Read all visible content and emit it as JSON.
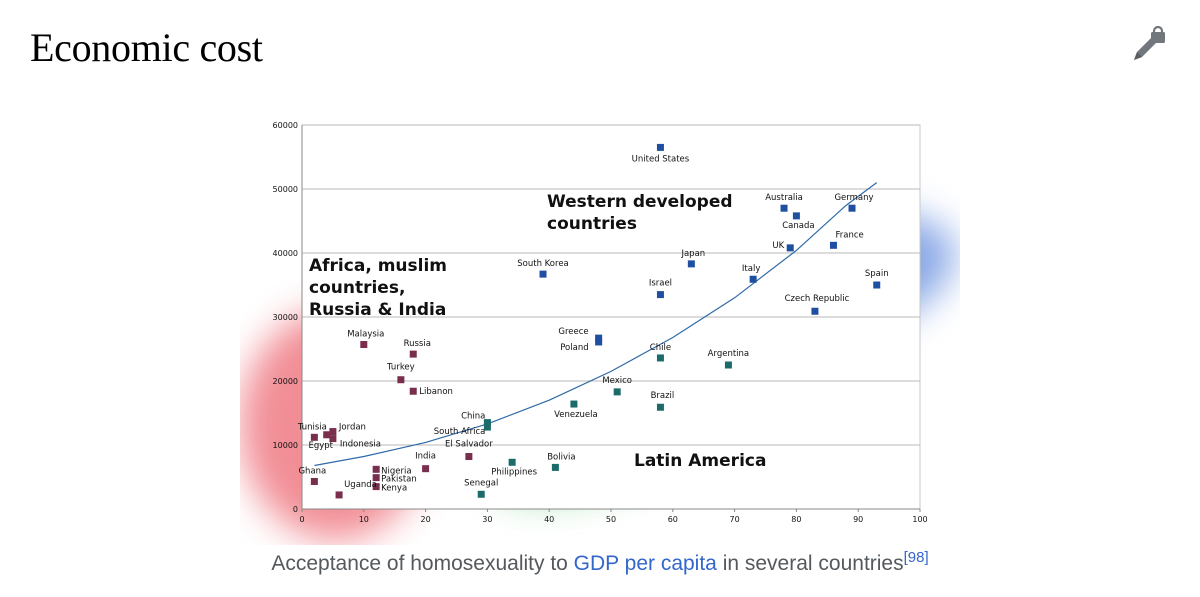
{
  "page": {
    "heading": "Economic cost",
    "caption_pre": "Acceptance of homosexuality to ",
    "caption_link": "GDP per capita",
    "caption_post": " in several countries",
    "caption_ref": "[98]"
  },
  "colors": {
    "accent_link": "#3366cc",
    "africa_region": "#e8434f",
    "western_region": "#3d6fd6",
    "latin_region": "#3fbf5a",
    "point_africa": "#7a2e4e",
    "point_western": "#1f4fa0",
    "point_latin": "#1a6b6a",
    "trend": "#2f6aa8"
  },
  "icons": {
    "edit": "pencil-lock-icon"
  },
  "chart_data": {
    "type": "scatter",
    "title": "",
    "xlabel": "",
    "ylabel": "",
    "xlim": [
      0,
      100
    ],
    "ylim": [
      0,
      60000
    ],
    "xticks": [
      0,
      10,
      20,
      30,
      40,
      50,
      60,
      70,
      80,
      90,
      100
    ],
    "yticks": [
      0,
      10000,
      20000,
      30000,
      40000,
      50000,
      60000
    ],
    "grid": "horizontal",
    "regions": [
      {
        "label_lines": [
          "Africa, muslim",
          "countries,",
          "Russia & India"
        ],
        "color": "#e8434f"
      },
      {
        "label_lines": [
          "Western developed",
          "countries"
        ],
        "color": "#3d6fd6"
      },
      {
        "label_lines": [
          "Latin America"
        ],
        "color": "#3fbf5a"
      }
    ],
    "points": [
      {
        "name": "United States",
        "x": 58,
        "y": 56500,
        "group": "western"
      },
      {
        "name": "Australia",
        "x": 78,
        "y": 47000,
        "group": "western"
      },
      {
        "name": "Germany",
        "x": 89,
        "y": 47000,
        "group": "western"
      },
      {
        "name": "Canada",
        "x": 80,
        "y": 45800,
        "group": "western"
      },
      {
        "name": "UK",
        "x": 79,
        "y": 40800,
        "group": "western"
      },
      {
        "name": "France",
        "x": 86,
        "y": 41200,
        "group": "western"
      },
      {
        "name": "Japan",
        "x": 63,
        "y": 38300,
        "group": "western"
      },
      {
        "name": "Italy",
        "x": 73,
        "y": 35900,
        "group": "western"
      },
      {
        "name": "Spain",
        "x": 93,
        "y": 35000,
        "group": "western"
      },
      {
        "name": "Israel",
        "x": 58,
        "y": 33500,
        "group": "western"
      },
      {
        "name": "Czech Republic",
        "x": 83,
        "y": 30900,
        "group": "western"
      },
      {
        "name": "South Korea",
        "x": 39,
        "y": 36700,
        "group": "western"
      },
      {
        "name": "Greece",
        "x": 48,
        "y": 26700,
        "group": "western"
      },
      {
        "name": "Poland",
        "x": 48,
        "y": 26100,
        "group": "western"
      },
      {
        "name": "Chile",
        "x": 58,
        "y": 23600,
        "group": "latin"
      },
      {
        "name": "Argentina",
        "x": 69,
        "y": 22500,
        "group": "latin"
      },
      {
        "name": "Mexico",
        "x": 51,
        "y": 18300,
        "group": "latin"
      },
      {
        "name": "Brazil",
        "x": 58,
        "y": 15900,
        "group": "latin"
      },
      {
        "name": "Venezuela",
        "x": 44,
        "y": 16400,
        "group": "latin"
      },
      {
        "name": "Bolivia",
        "x": 41,
        "y": 6500,
        "group": "latin"
      },
      {
        "name": "Philippines",
        "x": 34,
        "y": 7300,
        "group": "latin"
      },
      {
        "name": "Senegal",
        "x": 29,
        "y": 2300,
        "group": "latin"
      },
      {
        "name": "China",
        "x": 30,
        "y": 13500,
        "group": "latin"
      },
      {
        "name": "South Africa",
        "x": 30,
        "y": 12800,
        "group": "latin"
      },
      {
        "name": "El Salvador",
        "x": 27,
        "y": 8200,
        "group": "africa"
      },
      {
        "name": "Malaysia",
        "x": 10,
        "y": 25700,
        "group": "africa"
      },
      {
        "name": "Russia",
        "x": 18,
        "y": 24200,
        "group": "africa"
      },
      {
        "name": "Turkey",
        "x": 16,
        "y": 20200,
        "group": "africa"
      },
      {
        "name": "Libanon",
        "x": 18,
        "y": 18400,
        "group": "africa"
      },
      {
        "name": "Tunisia",
        "x": 2,
        "y": 11200,
        "group": "africa"
      },
      {
        "name": "Jordan",
        "x": 5,
        "y": 12100,
        "group": "africa"
      },
      {
        "name": "Egypt",
        "x": 4,
        "y": 11600,
        "group": "africa"
      },
      {
        "name": "Indonesia",
        "x": 5,
        "y": 11000,
        "group": "africa"
      },
      {
        "name": "India",
        "x": 20,
        "y": 6300,
        "group": "africa"
      },
      {
        "name": "Nigeria",
        "x": 12,
        "y": 6200,
        "group": "africa"
      },
      {
        "name": "Pakistan",
        "x": 12,
        "y": 4900,
        "group": "africa"
      },
      {
        "name": "Kenya",
        "x": 12,
        "y": 3500,
        "group": "africa"
      },
      {
        "name": "Ghana",
        "x": 2,
        "y": 4300,
        "group": "africa"
      },
      {
        "name": "Uganda",
        "x": 6,
        "y": 2200,
        "group": "africa"
      }
    ],
    "trendline": [
      [
        2,
        6800
      ],
      [
        10,
        8200
      ],
      [
        20,
        10400
      ],
      [
        30,
        13300
      ],
      [
        40,
        17000
      ],
      [
        50,
        21500
      ],
      [
        60,
        26800
      ],
      [
        70,
        33000
      ],
      [
        80,
        40400
      ],
      [
        88,
        47400
      ],
      [
        93,
        51000
      ]
    ]
  }
}
